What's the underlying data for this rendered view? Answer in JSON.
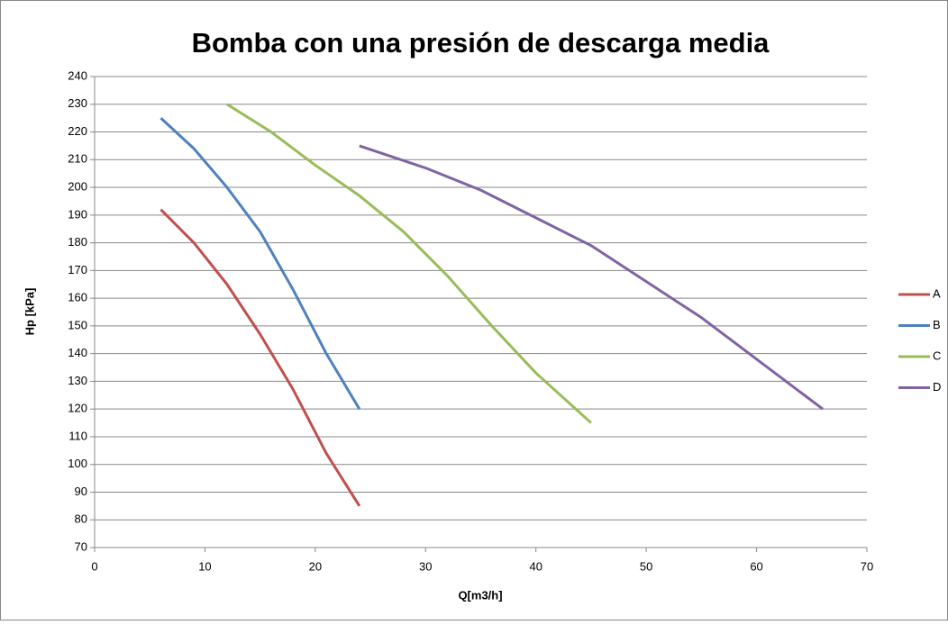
{
  "chart_data": {
    "type": "line",
    "title": "Bomba con una presión de descarga media",
    "xlabel": "Q[m3/h]",
    "ylabel": "Hp [kPa]",
    "xlim": [
      0,
      70
    ],
    "xticks": [
      0,
      10,
      20,
      30,
      40,
      50,
      60,
      70
    ],
    "ylim": [
      70,
      240
    ],
    "yticks": [
      70,
      80,
      90,
      100,
      110,
      120,
      130,
      140,
      150,
      160,
      170,
      180,
      190,
      200,
      210,
      220,
      230,
      240
    ],
    "grid": true,
    "legend": "right",
    "series": [
      {
        "name": "A",
        "color": "#c0504d",
        "x": [
          6,
          9,
          12,
          15,
          18,
          21,
          24
        ],
        "values": [
          192,
          180,
          165,
          147,
          127,
          104,
          85
        ]
      },
      {
        "name": "B",
        "color": "#4f81bd",
        "x": [
          6,
          9,
          12,
          15,
          18,
          21,
          24
        ],
        "values": [
          225,
          214,
          200,
          184,
          163,
          140,
          120
        ]
      },
      {
        "name": "C",
        "color": "#9bbb59",
        "x": [
          12,
          16,
          20,
          24,
          28,
          32,
          36,
          40,
          45
        ],
        "values": [
          230,
          220,
          208,
          197,
          184,
          168,
          150,
          133,
          115
        ]
      },
      {
        "name": "D",
        "color": "#8064a2",
        "x": [
          24,
          30,
          35,
          40,
          45,
          50,
          55,
          60,
          66
        ],
        "values": [
          215,
          207,
          199,
          189,
          179,
          166,
          153,
          138,
          120
        ]
      }
    ]
  }
}
